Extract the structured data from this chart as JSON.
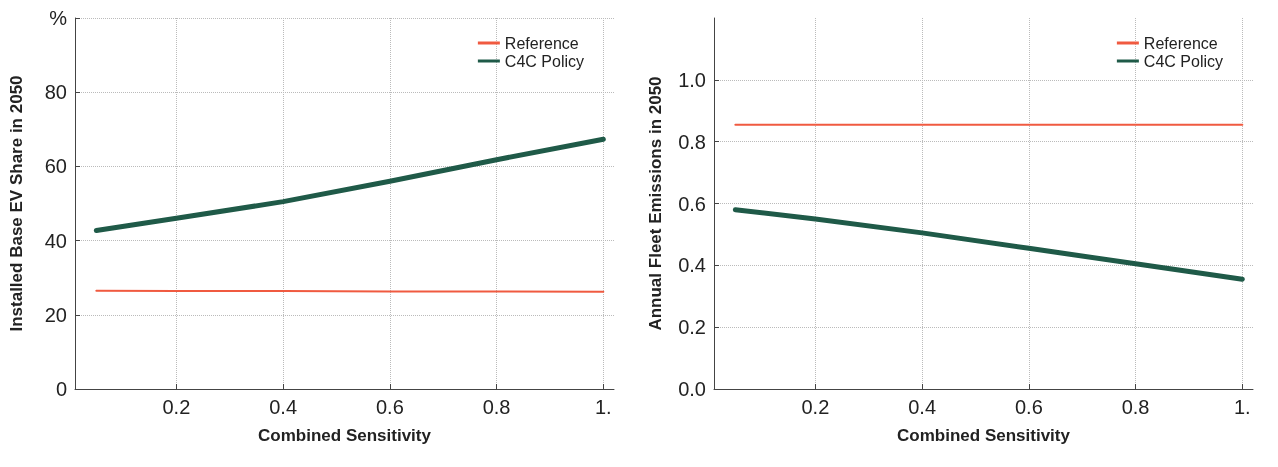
{
  "chart_data": [
    {
      "type": "line",
      "xlabel": "Combined Sensitivity",
      "ylabel": "Installed Base EV Share in 2050",
      "x": [
        0.05,
        0.2,
        0.4,
        0.6,
        0.8,
        1.0
      ],
      "series": [
        {
          "name": "Reference",
          "color": "#f05a40",
          "values": [
            26.5,
            26.4,
            26.4,
            26.3,
            26.3,
            26.2
          ]
        },
        {
          "name": "C4C Policy",
          "color": "#1f5a48",
          "values": [
            42.7,
            46,
            50.5,
            56,
            61.8,
            67.3
          ]
        }
      ],
      "xlim": [
        0.01,
        1.02
      ],
      "xticks": [
        0.2,
        0.4,
        0.6,
        0.8,
        {
          "value": 1,
          "label": "1."
        }
      ],
      "ylim": [
        0,
        100
      ],
      "yticks": [
        0,
        20,
        40,
        60,
        80,
        {
          "value": 100,
          "label": "%"
        }
      ],
      "grid": true,
      "legend": "top right",
      "marker": "none",
      "line_style": "solid"
    },
    {
      "type": "line",
      "xlabel": "Combined Sensitivity",
      "ylabel": "Annual Fleet Emissions in 2050",
      "x": [
        0.05,
        0.2,
        0.4,
        0.6,
        0.8,
        1.0
      ],
      "series": [
        {
          "name": "Reference",
          "color": "#f05a40",
          "values": [
            0.855,
            0.855,
            0.855,
            0.855,
            0.855,
            0.855
          ]
        },
        {
          "name": "C4C Policy",
          "color": "#1f5a48",
          "values": [
            0.58,
            0.55,
            0.505,
            0.455,
            0.405,
            0.355
          ]
        }
      ],
      "xlim": [
        0.01,
        1.02
      ],
      "xticks": [
        0.2,
        0.4,
        0.6,
        0.8,
        {
          "value": 1,
          "label": "1."
        }
      ],
      "ylim": [
        0,
        1.2
      ],
      "yticks": [
        {
          "value": 0,
          "label": "0.0"
        },
        0.2,
        0.4,
        0.6,
        0.8,
        {
          "value": 1,
          "label": "1.0"
        }
      ],
      "grid": true,
      "legend": "top right",
      "marker": "none",
      "line_style": "solid"
    }
  ]
}
